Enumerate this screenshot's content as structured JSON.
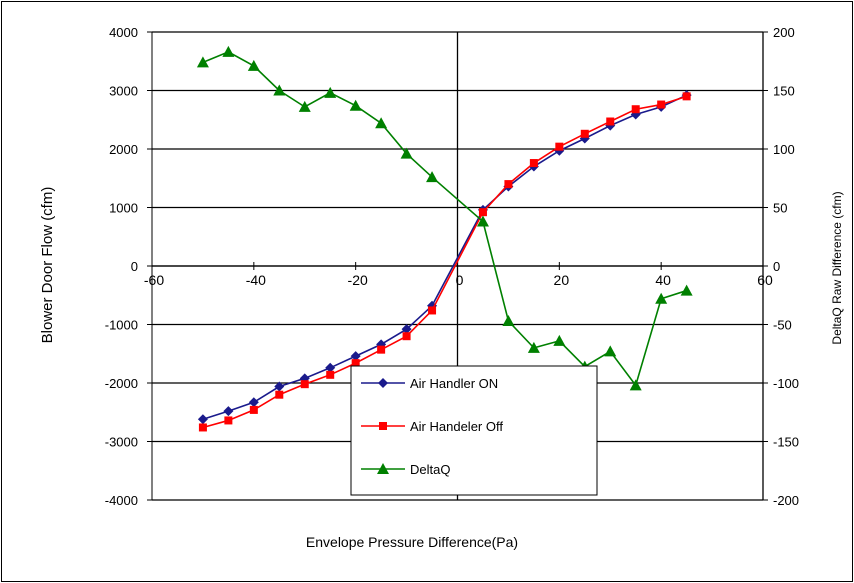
{
  "chart_data": {
    "type": "line",
    "title": "",
    "xlabel": "Envelope Pressure Difference(Pa)",
    "ylabel": "Blower Door Flow (cfm)",
    "y2label": "DeltaQ Raw Difference (cfm)",
    "xlim": [
      -60,
      60
    ],
    "ylim": [
      -4000,
      4000
    ],
    "y2lim": [
      -200,
      200
    ],
    "x_ticks": [
      -60,
      -40,
      -20,
      0,
      20,
      40,
      60
    ],
    "x_tick_labels": [
      "-60",
      "-40",
      "-20",
      "0",
      "20",
      "40",
      "60"
    ],
    "y_ticks": [
      -4000,
      -3000,
      -2000,
      -1000,
      0,
      1000,
      2000,
      3000,
      4000
    ],
    "y_tick_labels": [
      "-4000",
      "-3000",
      "-2000",
      "-1000",
      "0",
      "1000",
      "2000",
      "3000",
      "4000"
    ],
    "y2_ticks": [
      -200,
      -150,
      -100,
      -50,
      0,
      50,
      100,
      150,
      200
    ],
    "y2_tick_labels": [
      "-200",
      "-150",
      "-100",
      "-50",
      "0",
      "50",
      "100",
      "150",
      "200"
    ],
    "grid": "horizontal",
    "legend_position": "bottom-center",
    "series": [
      {
        "name": "Air Handler ON",
        "axis": "left",
        "color": "#1a1a8c",
        "marker": "diamond",
        "x": [
          -50,
          -45,
          -40,
          -35,
          -30,
          -25,
          -20,
          -15,
          -10,
          -5,
          5,
          10,
          15,
          20,
          25,
          30,
          35,
          40,
          45
        ],
        "y": [
          -2620,
          -2480,
          -2330,
          -2060,
          -1920,
          -1740,
          -1540,
          -1340,
          -1080,
          -680,
          960,
          1360,
          1700,
          1970,
          2180,
          2400,
          2590,
          2720,
          2920
        ]
      },
      {
        "name": "Air Handeler Off",
        "axis": "left",
        "color": "#ff0000",
        "marker": "square",
        "x": [
          -50,
          -45,
          -40,
          -35,
          -30,
          -25,
          -20,
          -15,
          -10,
          -5,
          5,
          10,
          15,
          20,
          25,
          30,
          35,
          40,
          45
        ],
        "y": [
          -2760,
          -2640,
          -2460,
          -2200,
          -2020,
          -1860,
          -1660,
          -1430,
          -1200,
          -760,
          920,
          1400,
          1760,
          2040,
          2260,
          2470,
          2680,
          2760,
          2900
        ]
      },
      {
        "name": "DeltaQ",
        "axis": "right",
        "color": "#008000",
        "marker": "triangle",
        "x": [
          -50,
          -45,
          -40,
          -35,
          -30,
          -25,
          -20,
          -15,
          -10,
          -5,
          5,
          10,
          15,
          20,
          25,
          30,
          35,
          40,
          45
        ],
        "y": [
          174,
          183,
          171,
          150,
          136,
          148,
          137,
          122,
          96,
          76,
          38,
          -47,
          -70,
          -64,
          -86,
          -73,
          -102,
          -28,
          -21
        ]
      }
    ]
  }
}
